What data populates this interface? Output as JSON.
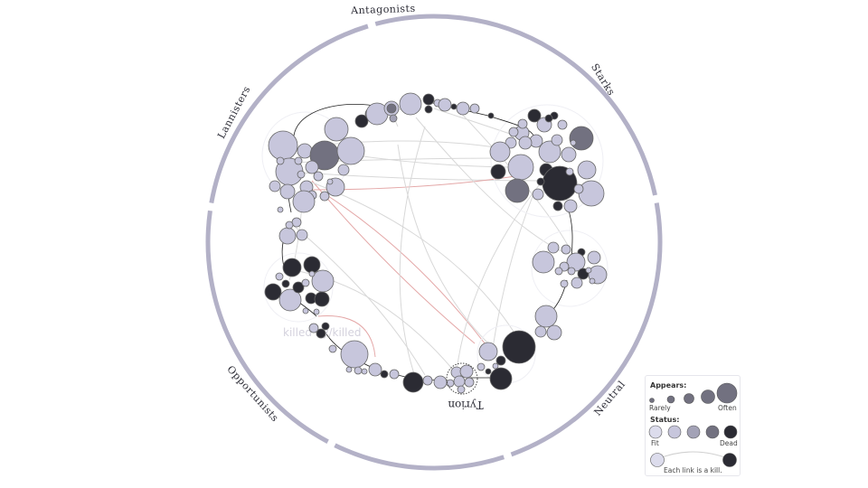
{
  "sectors": [
    {
      "name": "Antagonists"
    },
    {
      "name": "Starks"
    },
    {
      "name": "Neutral"
    },
    {
      "name": "Opportunists"
    },
    {
      "name": "Lannisters"
    }
  ],
  "highlighted_character": "Tyrion",
  "faint_hover_text": "killed by/killed",
  "status_colors": {
    "fit": "#dcdcec",
    "light": "#c7c6dc",
    "mid": "#a3a2b6",
    "dark": "#727180",
    "dead": "#2b2b33"
  },
  "ring_color": "#b3b1c7",
  "legend": {
    "appears_title": "Appears:",
    "appears_min": "Rarely",
    "appears_max": "Often",
    "status_title": "Status:",
    "status_min": "Fit",
    "status_max": "Dead",
    "link_caption": "Each link is a kill."
  }
}
